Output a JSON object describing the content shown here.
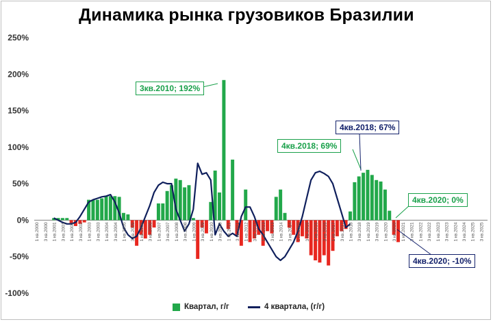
{
  "title": "Динамика рынка грузовиков Бразилии",
  "legend": {
    "bars": "Квартал, г/г",
    "line": "4 квартала, (г/г)"
  },
  "colors": {
    "bar_positive": "#22a84a",
    "bar_negative": "#e8271f",
    "line": "#0f1f5c",
    "callout_green": "#19a04a",
    "callout_navy": "#12206a"
  },
  "callouts": {
    "peak2010": "3кв.2010; 192%",
    "q4_2018_bar": "4кв.2018; 69%",
    "q4_2018_line": "4кв.2018; 67%",
    "q4_2020_bar": "4кв.2020; 0%",
    "q4_2020_line": "4кв.2020; -10%"
  },
  "chart_data": {
    "type": "bar",
    "title": "Динамика рынка грузовиков Бразилии",
    "y_ticks": [
      "250%",
      "200%",
      "150%",
      "100%",
      "50%",
      "0%",
      "-50%",
      "-100%"
    ],
    "ylim": [
      -100,
      250
    ],
    "grid": false,
    "legend_position": "bottom",
    "x_labels": [
      "1 кв.2000",
      "3 кв.2000",
      "1 кв.2001",
      "3 кв.2001",
      "1 кв.2002",
      "3 кв.2002",
      "1 кв.2003",
      "3 кв.2003",
      "1 кв.2004",
      "3 кв.2004",
      "1 кв.2005",
      "3 кв.2005",
      "1 кв.2006",
      "3 кв.2006",
      "1 кв.2007",
      "3 кв.2007",
      "1 кв.2008",
      "3 кв.2008",
      "1 кв.2009",
      "3 кв.2009",
      "1 кв.2010",
      "3 кв.2010",
      "1 кв.2011",
      "3 кв.2011",
      "1 кв.2012",
      "3 кв.2012",
      "1 кв.2013",
      "3 кв.2013",
      "1 кв.2014",
      "3 кв.2014",
      "1 кв.2015",
      "3 кв.2015",
      "1 кв.2016",
      "3 кв.2016",
      "1 кв.2017",
      "3 кв.2017",
      "1 кв.2018",
      "3 кв.2018",
      "1 кв.2019",
      "3 кв.2019",
      "1 кв.2020",
      "3 кв.2020",
      "1 кв.2021",
      "3 кв.2021",
      "1 кв.2022",
      "3 кв.2022",
      "1 кв.2023",
      "3 кв.2023",
      "1 кв.2024",
      "3 кв.2024",
      "1 кв.2025",
      "3 кв.2025"
    ],
    "series": [
      {
        "name": "Квартал, г/г",
        "type": "bar",
        "values": [
          0,
          0,
          0,
          0,
          3,
          3,
          3,
          3,
          -5,
          -8,
          -5,
          -3,
          28,
          28,
          28,
          30,
          33,
          33,
          33,
          32,
          10,
          8,
          -10,
          -35,
          -20,
          -25,
          -20,
          -10,
          23,
          23,
          40,
          48,
          57,
          55,
          45,
          48,
          3,
          -53,
          -10,
          -18,
          25,
          68,
          38,
          192,
          -12,
          83,
          -20,
          -35,
          42,
          -30,
          -25,
          -20,
          -35,
          -15,
          -18,
          32,
          42,
          10,
          -10,
          -20,
          -30,
          -22,
          -25,
          -48,
          -55,
          -58,
          -48,
          -62,
          -42,
          -22,
          -15,
          -12,
          12,
          52,
          60,
          65,
          69,
          62,
          55,
          53,
          42,
          13,
          -20,
          -30,
          0
        ],
        "x_start": "1 кв.2000"
      },
      {
        "name": "4 квартала, (г/г)",
        "type": "line",
        "values": [
          null,
          null,
          null,
          null,
          3,
          0,
          -3,
          -5,
          -5,
          -3,
          5,
          15,
          25,
          28,
          30,
          32,
          33,
          35,
          25,
          10,
          -10,
          -20,
          -25,
          -22,
          -10,
          5,
          20,
          38,
          48,
          52,
          50,
          50,
          15,
          0,
          -15,
          -5,
          15,
          78,
          63,
          65,
          55,
          -20,
          -5,
          -15,
          -22,
          -18,
          -22,
          5,
          18,
          18,
          5,
          -12,
          -20,
          -30,
          -40,
          -50,
          -55,
          -50,
          -40,
          -30,
          -15,
          5,
          30,
          55,
          65,
          67,
          64,
          60,
          50,
          30,
          10,
          -10,
          -5
        ]
      }
    ]
  }
}
